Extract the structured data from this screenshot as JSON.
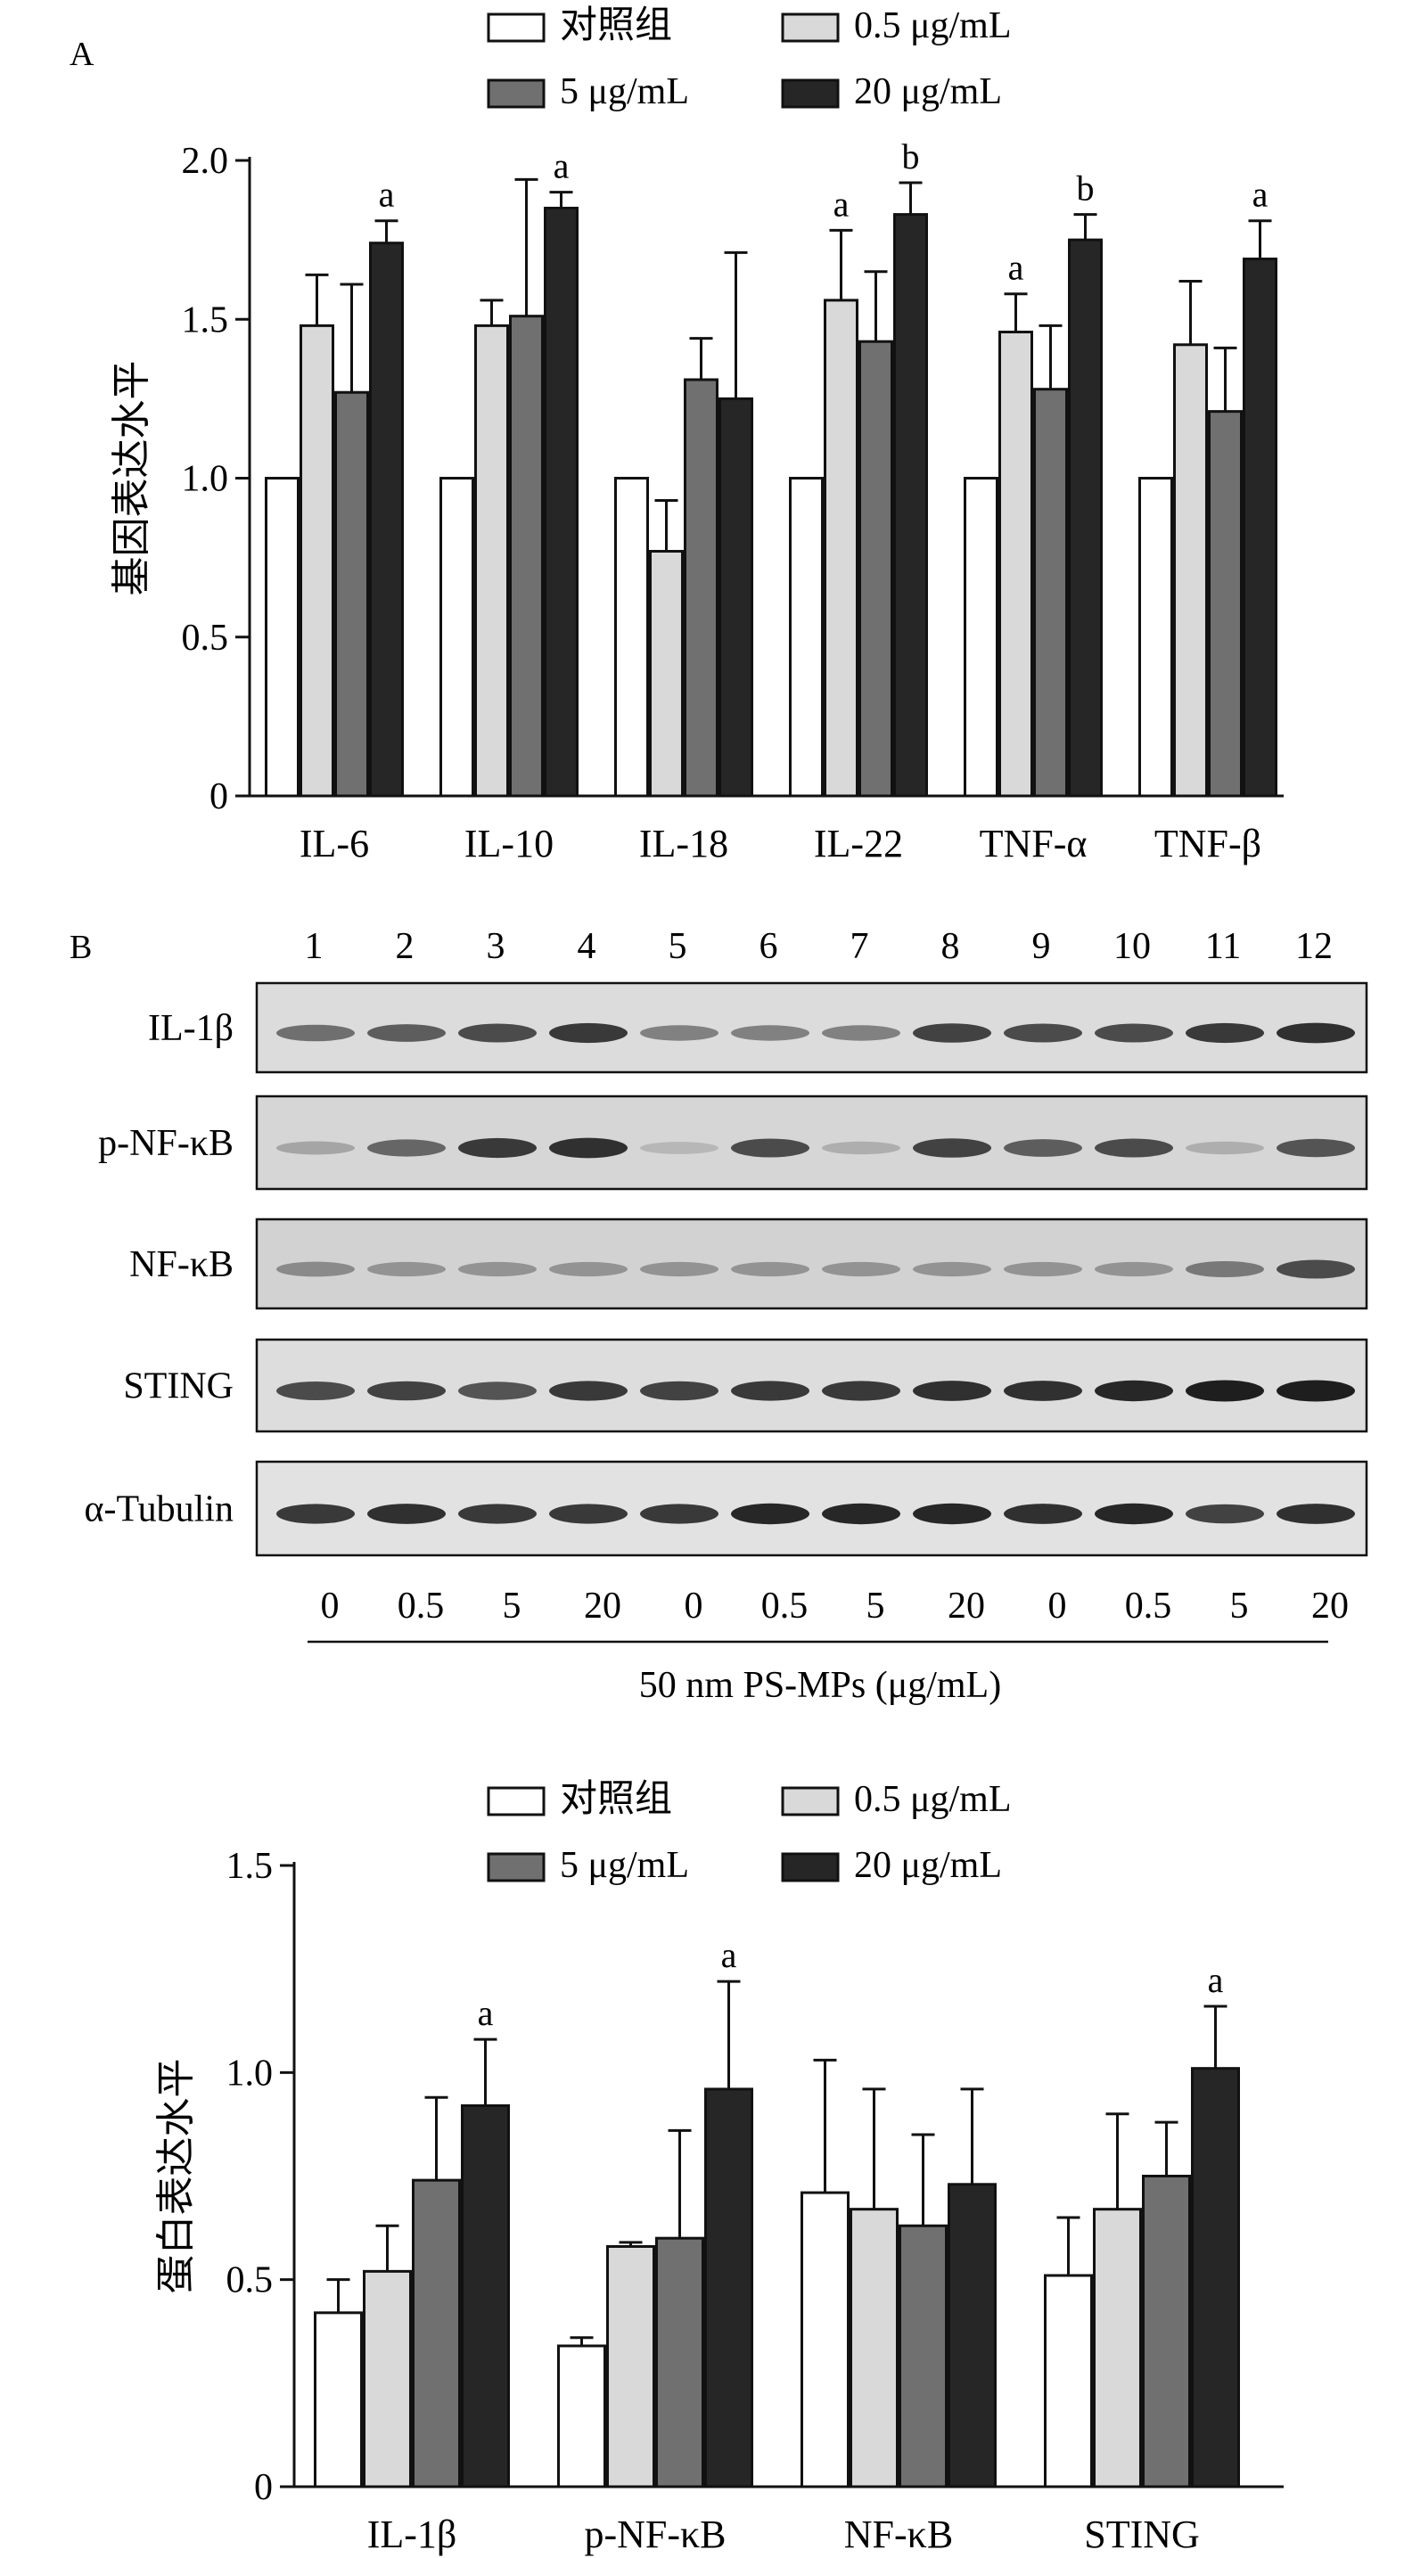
{
  "panel_a": {
    "label": "A",
    "legend": [
      "对照组",
      "0.5 μg/mL",
      "5 μg/mL",
      "20 μg/mL"
    ]
  },
  "panel_b": {
    "label": "B",
    "lane_numbers": [
      "1",
      "2",
      "3",
      "4",
      "5",
      "6",
      "7",
      "8",
      "9",
      "10",
      "11",
      "12"
    ],
    "blot_rows": [
      "IL-1β",
      "p-NF-κB",
      "NF-κB",
      "STING",
      "α-Tubulin"
    ],
    "concentrations": [
      "0",
      "0.5",
      "5",
      "20",
      "0",
      "0.5",
      "5",
      "20",
      "0",
      "0.5",
      "5",
      "20"
    ],
    "treatment_label": "50 nm PS-MPs (μg/mL)",
    "legend": [
      "对照组",
      "0.5 μg/mL",
      "5 μg/mL",
      "20 μg/mL"
    ]
  },
  "colors": {
    "control": "#ffffff",
    "dose_0_5": "#d9d9d9",
    "dose_5": "#707070",
    "dose_20": "#262626",
    "axis": "#111111"
  },
  "chart_data": [
    {
      "type": "bar",
      "ylabel": "基因表达水平",
      "ylim": [
        0,
        2.0
      ],
      "yticks": [
        "0",
        "0.5",
        "1.0",
        "1.5",
        "2.0"
      ],
      "categories": [
        "IL-6",
        "IL-10",
        "IL-18",
        "IL-22",
        "TNF-α",
        "TNF-β"
      ],
      "legend_position": "top",
      "series": [
        {
          "name": "对照组",
          "values": [
            1.0,
            1.0,
            1.0,
            1.0,
            1.0,
            1.0
          ],
          "errors": [
            0,
            0,
            0,
            0,
            0,
            0
          ]
        },
        {
          "name": "0.5 μg/mL",
          "values": [
            1.48,
            1.48,
            0.77,
            1.56,
            1.46,
            1.42
          ],
          "errors": [
            0.16,
            0.08,
            0.16,
            0.22,
            0.12,
            0.2
          ]
        },
        {
          "name": "5 μg/mL",
          "values": [
            1.27,
            1.51,
            1.31,
            1.43,
            1.28,
            1.21
          ],
          "errors": [
            0.34,
            0.43,
            0.13,
            0.22,
            0.2,
            0.2
          ]
        },
        {
          "name": "20 μg/mL",
          "values": [
            1.74,
            1.85,
            1.25,
            1.83,
            1.75,
            1.69
          ],
          "errors": [
            0.07,
            0.05,
            0.46,
            0.1,
            0.08,
            0.12
          ]
        }
      ],
      "annotations": [
        {
          "category": "IL-6",
          "series": "20 μg/mL",
          "text": "a"
        },
        {
          "category": "IL-10",
          "series": "20 μg/mL",
          "text": "a"
        },
        {
          "category": "IL-22",
          "series": "0.5 μg/mL",
          "text": "a"
        },
        {
          "category": "IL-22",
          "series": "20 μg/mL",
          "text": "b"
        },
        {
          "category": "TNF-α",
          "series": "0.5 μg/mL",
          "text": "a"
        },
        {
          "category": "TNF-α",
          "series": "20 μg/mL",
          "text": "b"
        },
        {
          "category": "TNF-β",
          "series": "20 μg/mL",
          "text": "a"
        }
      ]
    },
    {
      "type": "bar",
      "ylabel": "蛋白表达水平",
      "ylim": [
        0,
        1.5
      ],
      "yticks": [
        "0",
        "0.5",
        "1.0",
        "1.5"
      ],
      "categories": [
        "IL-1β",
        "p-NF-κB",
        "NF-κB",
        "STING"
      ],
      "legend_position": "top",
      "series": [
        {
          "name": "对照组",
          "values": [
            0.42,
            0.34,
            0.71,
            0.51
          ],
          "errors": [
            0.08,
            0.02,
            0.32,
            0.14
          ]
        },
        {
          "name": "0.5 μg/mL",
          "values": [
            0.52,
            0.58,
            0.67,
            0.67
          ],
          "errors": [
            0.11,
            0.01,
            0.29,
            0.23
          ]
        },
        {
          "name": "5 μg/mL",
          "values": [
            0.74,
            0.6,
            0.63,
            0.75
          ],
          "errors": [
            0.2,
            0.26,
            0.22,
            0.13
          ]
        },
        {
          "name": "20 μg/mL",
          "values": [
            0.92,
            0.96,
            0.73,
            1.01
          ],
          "errors": [
            0.16,
            0.26,
            0.23,
            0.15
          ]
        }
      ],
      "annotations": [
        {
          "category": "IL-1β",
          "series": "20 μg/mL",
          "text": "a"
        },
        {
          "category": "p-NF-κB",
          "series": "20 μg/mL",
          "text": "a"
        },
        {
          "category": "STING",
          "series": "20 μg/mL",
          "text": "a"
        }
      ]
    }
  ]
}
